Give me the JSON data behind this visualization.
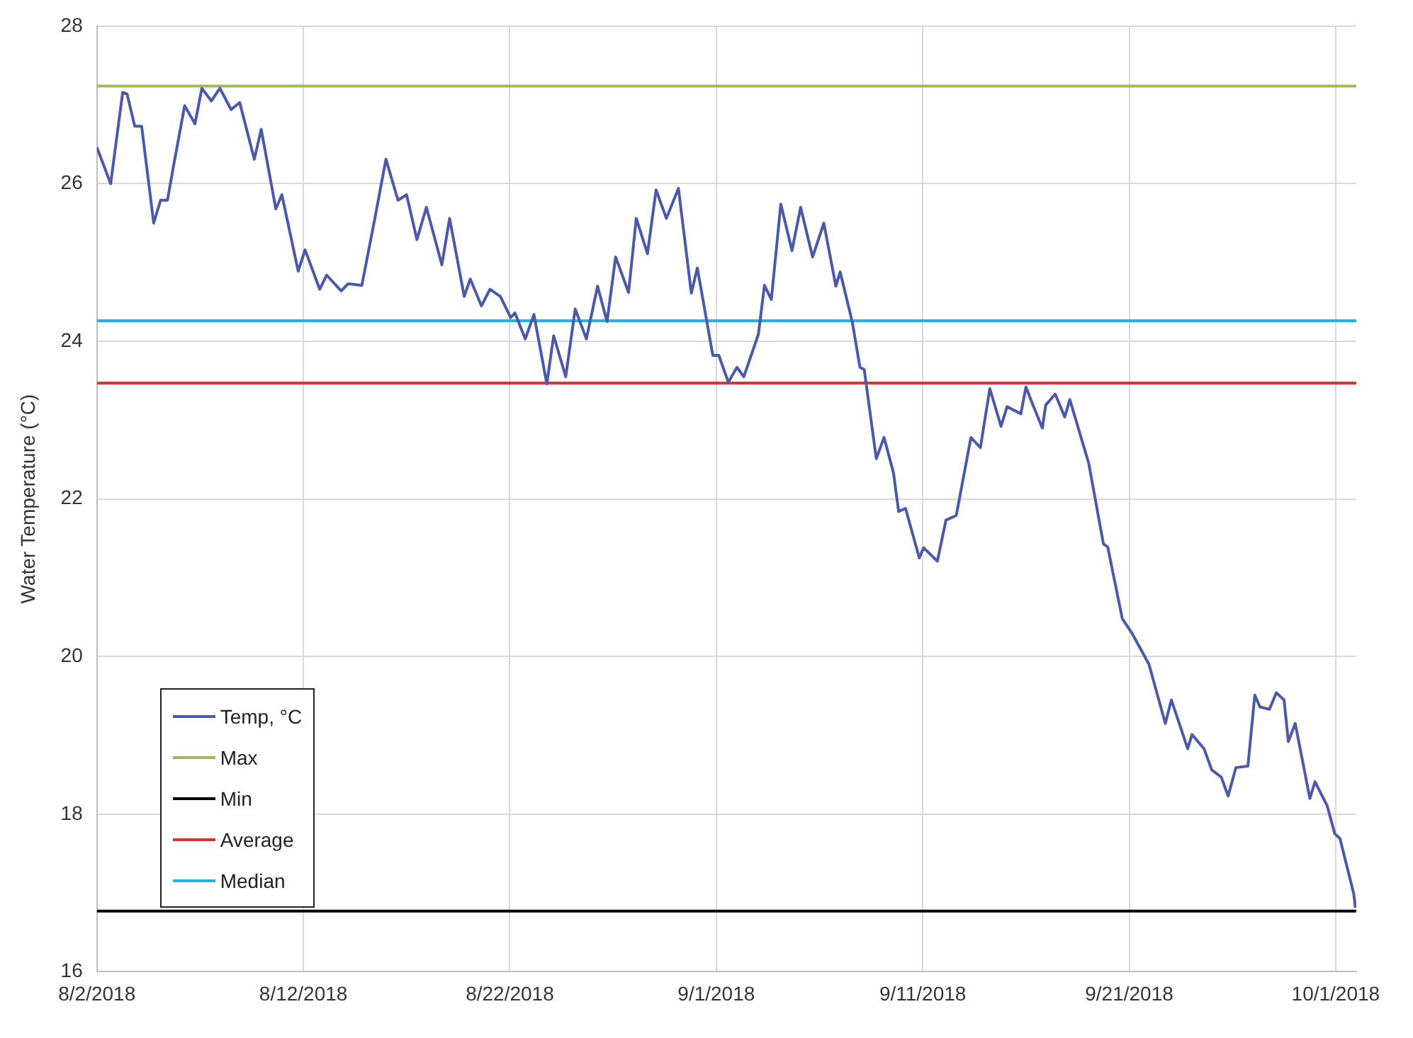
{
  "chart_data": {
    "type": "line",
    "ylabel": "Water Temperature (°C)",
    "xlim": [
      "2018-08-02",
      "2018-10-02"
    ],
    "ylim": [
      16,
      28
    ],
    "yticks": [
      16,
      18,
      20,
      22,
      24,
      26,
      28
    ],
    "xticks": [
      {
        "value": "2018-08-02",
        "label": "8/2/2018"
      },
      {
        "value": "2018-08-12",
        "label": "8/12/2018"
      },
      {
        "value": "2018-08-22",
        "label": "8/22/2018"
      },
      {
        "value": "2018-09-01",
        "label": "9/1/2018"
      },
      {
        "value": "2018-09-11",
        "label": "9/11/2018"
      },
      {
        "value": "2018-09-21",
        "label": "9/21/2018"
      },
      {
        "value": "2018-10-01",
        "label": "10/1/2018"
      }
    ],
    "grid": true,
    "legend": "bottom left",
    "marker": "none",
    "line_style": "solid",
    "series": [
      {
        "name": "Temp, °C",
        "color": "#4a5aa8",
        "x": [
          "2018-08-02T00:00",
          "2018-08-02T16:00",
          "2018-08-03T06:00",
          "2018-08-03T11:00",
          "2018-08-03T20:00",
          "2018-08-04T04:00",
          "2018-08-04T18:00",
          "2018-08-05T02:00",
          "2018-08-05T10:00",
          "2018-08-05T17:00",
          "2018-08-06T06:00",
          "2018-08-06T18:00",
          "2018-08-07T02:00",
          "2018-08-07T13:00",
          "2018-08-07T23:00",
          "2018-08-08T12:00",
          "2018-08-08T22:00",
          "2018-08-09T15:00",
          "2018-08-09T23:00",
          "2018-08-10T16:00",
          "2018-08-10T23:00",
          "2018-08-11T18:00",
          "2018-08-12T02:00",
          "2018-08-12T19:00",
          "2018-08-13T03:00",
          "2018-08-13T20:00",
          "2018-08-14T04:00",
          "2018-08-14T20:00",
          "2018-08-15T12:00",
          "2018-08-16T00:00",
          "2018-08-16T14:00",
          "2018-08-17T00:00",
          "2018-08-17T12:00",
          "2018-08-17T23:00",
          "2018-08-18T17:00",
          "2018-08-19T02:00",
          "2018-08-19T19:00",
          "2018-08-20T02:00",
          "2018-08-20T15:00",
          "2018-08-21T01:00",
          "2018-08-21T13:00",
          "2018-08-22T01:00",
          "2018-08-22T06:00",
          "2018-08-22T18:00",
          "2018-08-23T04:00",
          "2018-08-23T19:00",
          "2018-08-24T03:00",
          "2018-08-24T17:00",
          "2018-08-25T04:00",
          "2018-08-25T17:00",
          "2018-08-26T06:00",
          "2018-08-26T17:00",
          "2018-08-27T03:00",
          "2018-08-27T18:00",
          "2018-08-28T03:00",
          "2018-08-28T16:00",
          "2018-08-29T02:00",
          "2018-08-29T14:00",
          "2018-08-30T04:00",
          "2018-08-30T19:00",
          "2018-08-31T02:00",
          "2018-08-31T20:00",
          "2018-09-01T03:00",
          "2018-09-01T14:00",
          "2018-09-02T00:00",
          "2018-09-02T08:00",
          "2018-09-03T01:00",
          "2018-09-03T08:00",
          "2018-09-03T16:00",
          "2018-09-04T03:00",
          "2018-09-04T16:00",
          "2018-09-05T02:00",
          "2018-09-05T16:00",
          "2018-09-06T05:00",
          "2018-09-06T19:00",
          "2018-09-07T00:00",
          "2018-09-07T14:00",
          "2018-09-07T23:00",
          "2018-09-08T04:00",
          "2018-09-08T18:00",
          "2018-09-09T03:00",
          "2018-09-09T14:00",
          "2018-09-09T20:00",
          "2018-09-10T04:00",
          "2018-09-10T20:00",
          "2018-09-11T01:00",
          "2018-09-11T17:00",
          "2018-09-12T03:00",
          "2018-09-12T15:00",
          "2018-09-13T08:00",
          "2018-09-13T19:00",
          "2018-09-14T06:00",
          "2018-09-14T19:00",
          "2018-09-15T02:00",
          "2018-09-15T18:00",
          "2018-09-16T00:00",
          "2018-09-16T07:00",
          "2018-09-16T19:00",
          "2018-09-16T23:00",
          "2018-09-17T10:00",
          "2018-09-17T21:00",
          "2018-09-18T03:00",
          "2018-09-19T01:00",
          "2018-09-19T18:00",
          "2018-09-19T23:00",
          "2018-09-20T16:00",
          "2018-09-21T03:00",
          "2018-09-21T23:00",
          "2018-09-22T18:00",
          "2018-09-23T01:00",
          "2018-09-23T20:00",
          "2018-09-24T01:00",
          "2018-09-24T15:00",
          "2018-09-25T00:00",
          "2018-09-25T11:00",
          "2018-09-25T19:00",
          "2018-09-26T04:00",
          "2018-09-26T18:00",
          "2018-09-27T02:00",
          "2018-09-27T08:00",
          "2018-09-27T19:00",
          "2018-09-28T03:00",
          "2018-09-28T12:00",
          "2018-09-28T17:00",
          "2018-09-29T01:00",
          "2018-09-29T18:00",
          "2018-09-30T00:00",
          "2018-09-30T14:00",
          "2018-09-30T23:00",
          "2018-10-01T05:00",
          "2018-10-01T21:00",
          "2018-10-01T23:00"
        ],
        "values": [
          26.46,
          26.0,
          27.16,
          27.14,
          26.73,
          26.73,
          25.5,
          25.79,
          25.79,
          26.22,
          26.99,
          26.76,
          27.21,
          27.05,
          27.21,
          26.94,
          27.03,
          26.31,
          26.69,
          25.68,
          25.86,
          24.89,
          25.16,
          24.66,
          24.84,
          24.64,
          24.73,
          24.71,
          25.61,
          26.31,
          25.79,
          25.86,
          25.29,
          25.7,
          24.97,
          25.56,
          24.57,
          24.79,
          24.45,
          24.66,
          24.57,
          24.3,
          24.36,
          24.03,
          24.34,
          23.46,
          24.07,
          23.55,
          24.41,
          24.03,
          24.7,
          24.25,
          25.07,
          24.62,
          25.56,
          25.11,
          25.92,
          25.56,
          25.94,
          24.61,
          24.93,
          23.82,
          23.82,
          23.48,
          23.67,
          23.55,
          24.09,
          24.71,
          24.53,
          25.74,
          25.15,
          25.7,
          25.07,
          25.5,
          24.7,
          24.88,
          24.25,
          23.67,
          23.64,
          22.51,
          22.78,
          22.33,
          21.84,
          21.88,
          21.25,
          21.38,
          21.21,
          21.73,
          21.79,
          22.78,
          22.65,
          23.4,
          22.92,
          23.17,
          23.08,
          23.42,
          23.22,
          22.9,
          23.19,
          23.33,
          23.04,
          23.26,
          22.45,
          21.43,
          21.39,
          20.48,
          20.3,
          19.9,
          19.15,
          19.45,
          18.83,
          19.01,
          18.83,
          18.56,
          18.47,
          18.23,
          18.59,
          18.61,
          19.51,
          19.36,
          19.33,
          19.54,
          19.45,
          18.92,
          19.15,
          18.2,
          18.41,
          18.11,
          17.75,
          17.69,
          16.99,
          16.81
        ]
      },
      {
        "name": "Max",
        "color": "#9bbb59",
        "x": [
          "2018-08-02",
          "2018-10-02"
        ],
        "values": [
          27.24,
          27.24
        ]
      },
      {
        "name": "Min",
        "color": "#000000",
        "x": [
          "2018-08-02",
          "2018-10-02"
        ],
        "values": [
          16.77,
          16.77
        ]
      },
      {
        "name": "Average",
        "color": "#e03030",
        "x": [
          "2018-08-02",
          "2018-10-02"
        ],
        "values": [
          23.47,
          23.47
        ]
      },
      {
        "name": "Median",
        "color": "#2ab0e0",
        "x": [
          "2018-08-02",
          "2018-10-02"
        ],
        "values": [
          24.26,
          24.26
        ]
      }
    ]
  }
}
